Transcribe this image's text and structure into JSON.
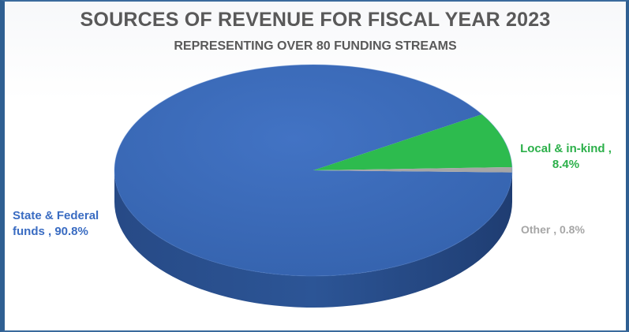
{
  "chart_data": {
    "type": "pie",
    "title": "SOURCES OF REVENUE FOR FISCAL YEAR 2023",
    "subtitle": "REPRESENTING OVER 80 FUNDING STREAMS",
    "slices": [
      {
        "label": "State & Federal funds",
        "value": 90.8,
        "display_line1": "State & Federal",
        "display_line2": "funds , 90.8%",
        "color": "#3b67b3"
      },
      {
        "label": "Local & in-kind",
        "value": 8.4,
        "display_line1": "Local & in-kind ,",
        "display_line2": "8.4%",
        "color": "#2dbb4e"
      },
      {
        "label": "Other",
        "value": 0.8,
        "display_line1": "Other , 0.8%",
        "color": "#a6a6a6"
      }
    ],
    "legend": "none",
    "style": "3d"
  }
}
